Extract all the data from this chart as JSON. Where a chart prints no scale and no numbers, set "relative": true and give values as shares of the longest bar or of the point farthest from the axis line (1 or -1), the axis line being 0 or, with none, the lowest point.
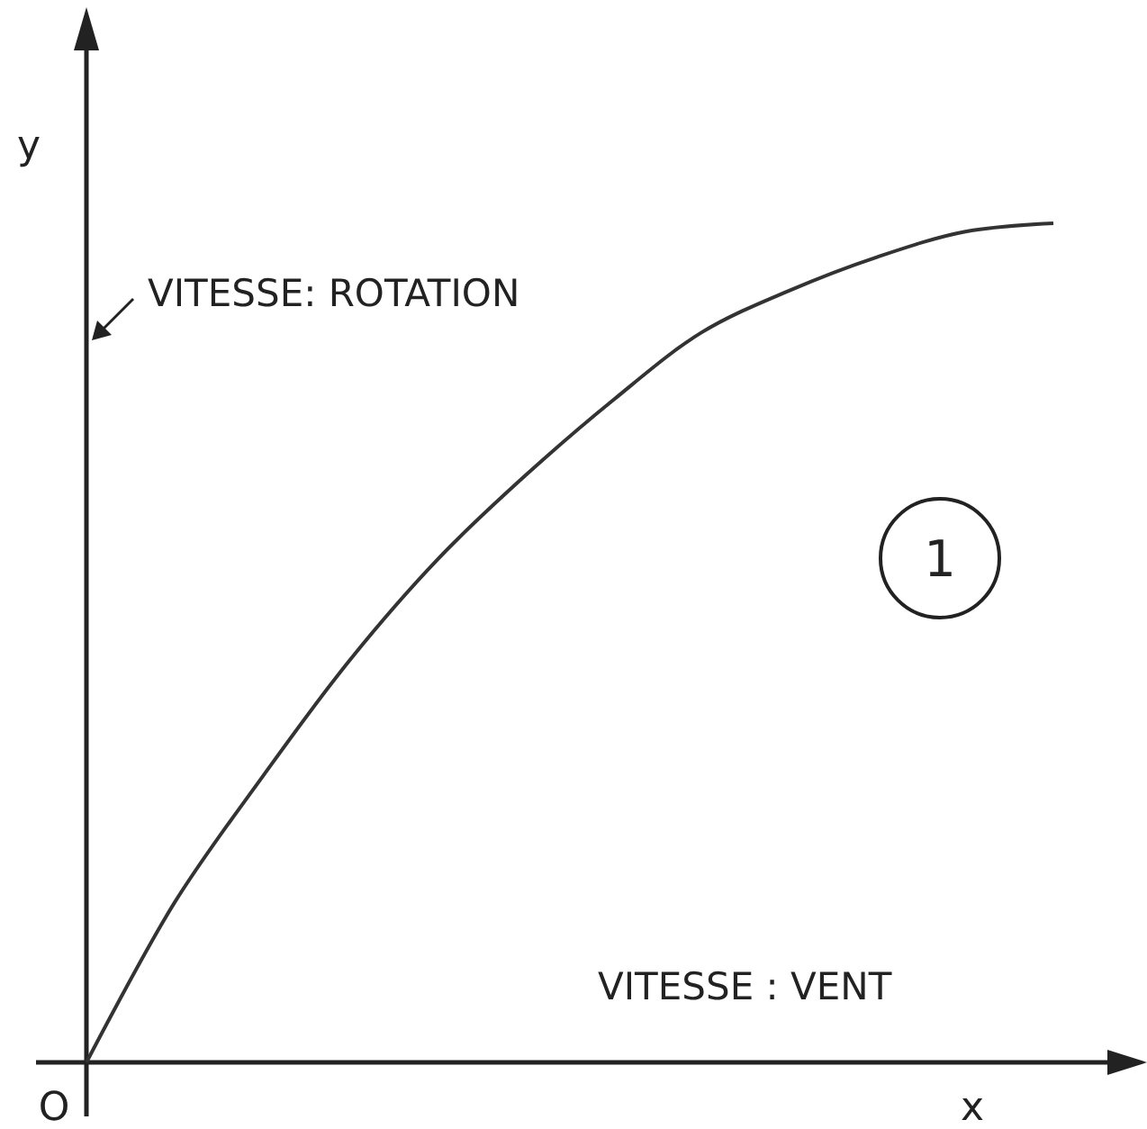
{
  "chart_data": {
    "type": "line",
    "relative": true,
    "xlabel": "x",
    "ylabel": "y",
    "categories": [
      null,
      null,
      null,
      null,
      null,
      null,
      null,
      null,
      null,
      null,
      null,
      null
    ],
    "series": [
      {
        "color": "#333333",
        "values": [
          0,
          0.19,
          0.34,
          0.48,
          0.6,
          0.7,
          0.79,
          0.87,
          0.92,
          0.96,
          0.99,
          1
        ]
      }
    ],
    "annotations": [
      "VITESSE: ROTATION",
      "VITESSE : VENT",
      "1",
      "O"
    ],
    "marker": "none",
    "line_style": "solid"
  }
}
